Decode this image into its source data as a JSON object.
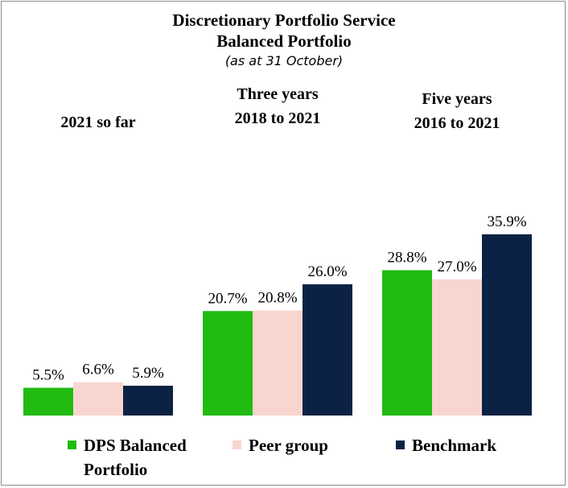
{
  "chart_data": {
    "type": "bar",
    "title": "Discretionary Portfolio Service",
    "subtitle": "Balanced Portfolio",
    "note": "(as at 31 October)",
    "categories": [
      "2021 so far",
      "Three years 2018 to 2021",
      "Five years 2016 to 2021"
    ],
    "category_lines": [
      [
        "2021 so far"
      ],
      [
        "Three years",
        "2018 to 2021"
      ],
      [
        "Five years",
        "2016 to 2021"
      ]
    ],
    "series": [
      {
        "name": "DPS Balanced Portfolio",
        "values": [
          5.5,
          20.7,
          28.8
        ],
        "labels": [
          "5.5%",
          "20.7%",
          "28.8%"
        ],
        "color": "#22bb11"
      },
      {
        "name": "Peer group",
        "values": [
          6.6,
          20.8,
          27.0
        ],
        "labels": [
          "6.6%",
          "20.8%",
          "27.0%"
        ],
        "color": "#f8d6cf"
      },
      {
        "name": "Benchmark",
        "values": [
          5.9,
          26.0,
          35.9
        ],
        "labels": [
          "5.9%",
          "26.0%",
          "35.9%"
        ],
        "color": "#0c2244"
      }
    ],
    "ylim": [
      0,
      35.9
    ],
    "grid": false,
    "legend_position": "bottom",
    "legend_lines": [
      [
        "DPS Balanced",
        "Portfolio"
      ],
      [
        "Peer group"
      ],
      [
        "Benchmark"
      ]
    ]
  }
}
